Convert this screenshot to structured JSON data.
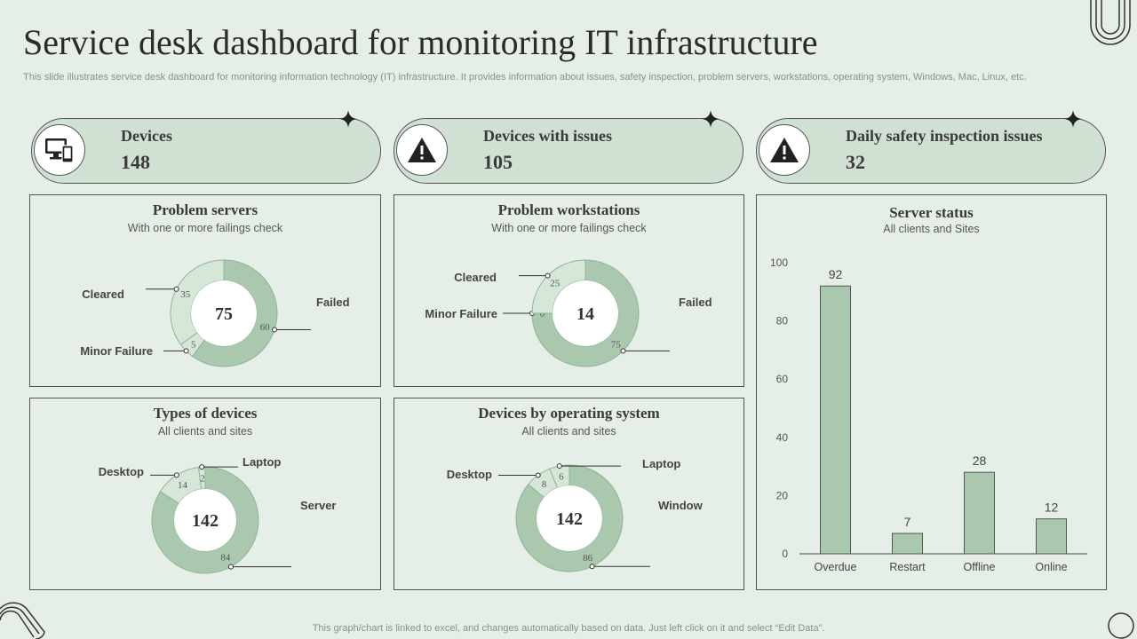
{
  "header": {
    "title": "Service desk dashboard for monitoring IT infrastructure",
    "subtitle": "This slide illustrates service desk dashboard for monitoring information technology (IT) infrastructure. It provides information about issues, safety inspection, problem servers, workstations, operating system, Windows, Mac, Linux, etc."
  },
  "kpis": [
    {
      "label": "Devices",
      "value": "148",
      "icon": "devices-icon"
    },
    {
      "label": "Devices with issues",
      "value": "105",
      "icon": "warning-icon"
    },
    {
      "label": "Daily safety inspection issues",
      "value": "32",
      "icon": "warning-icon"
    }
  ],
  "colors": {
    "accent": "#a9c8ae",
    "accent_light": "#d6e6d8",
    "background": "#e6efe7",
    "border": "#555555"
  },
  "chart_data": [
    {
      "type": "pie",
      "title": "Problem servers",
      "subtitle": "With one or more failings check",
      "center_label": "75",
      "slices": [
        {
          "label": "Failed",
          "value": 60
        },
        {
          "label": "Minor Failure",
          "value": 5
        },
        {
          "label": "Cleared",
          "value": 35
        }
      ]
    },
    {
      "type": "pie",
      "title": "Problem workstations",
      "subtitle": "With one or more failings check",
      "center_label": "14",
      "slices": [
        {
          "label": "Failed",
          "value": 75
        },
        {
          "label": "Minor Failure",
          "value": 0
        },
        {
          "label": "Cleared",
          "value": 25
        }
      ]
    },
    {
      "type": "pie",
      "title": "Types of devices",
      "subtitle": "All clients and sites",
      "center_label": "142",
      "slices": [
        {
          "label": "Server",
          "value": 84
        },
        {
          "label": "Desktop",
          "value": 14
        },
        {
          "label": "Laptop",
          "value": 2
        }
      ]
    },
    {
      "type": "pie",
      "title": "Devices by operating system",
      "subtitle": "All clients and sites",
      "center_label": "142",
      "slices": [
        {
          "label": "Window",
          "value": 86
        },
        {
          "label": "Desktop",
          "value": 8
        },
        {
          "label": "Laptop",
          "value": 6
        }
      ]
    },
    {
      "type": "bar",
      "title": "Server status",
      "subtitle": "All clients and Sites",
      "categories": [
        "Overdue",
        "Restart",
        "Offline",
        "Online"
      ],
      "values": [
        92,
        7,
        28,
        12
      ],
      "ylim": [
        0,
        100
      ],
      "yticks": [
        0,
        20,
        40,
        60,
        80,
        100
      ],
      "grid": false
    }
  ],
  "footer": "This graph/chart is linked to excel, and changes automatically based on data. Just left click on it and select “Edit Data”."
}
